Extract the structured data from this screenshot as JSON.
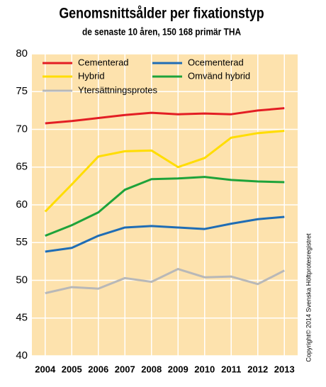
{
  "chart_data": {
    "type": "line",
    "title": "Genomsnittsålder per fixationstyp",
    "subtitle": "de senaste 10 åren, 150 168 primär THA",
    "annotation": "Copyright© 2014 Svenska Höftprotesregistret",
    "categories": [
      "2004",
      "2005",
      "2006",
      "2007",
      "2008",
      "2009",
      "2010",
      "2011",
      "2012",
      "2013"
    ],
    "series": [
      {
        "name": "Cementerad",
        "color": "#e31e24",
        "values": [
          70.8,
          71.1,
          71.5,
          71.9,
          72.2,
          72.0,
          72.1,
          72.0,
          72.5,
          72.8
        ]
      },
      {
        "name": "Ocementerad",
        "color": "#1f6db5",
        "values": [
          53.8,
          54.3,
          55.9,
          57.0,
          57.2,
          57.0,
          56.8,
          57.5,
          58.1,
          58.4
        ]
      },
      {
        "name": "Hybrid",
        "color": "#ffdd00",
        "values": [
          59.1,
          62.7,
          66.4,
          67.1,
          67.2,
          65.0,
          66.2,
          68.9,
          69.5,
          69.8
        ]
      },
      {
        "name": "Omvänd hybrid",
        "color": "#1ea33a",
        "values": [
          55.9,
          57.3,
          59.0,
          62.0,
          63.4,
          63.5,
          63.7,
          63.3,
          63.1,
          63.0
        ]
      },
      {
        "name": "Ytersättningsprotes",
        "color": "#b8b8b8",
        "values": [
          48.3,
          49.1,
          48.9,
          50.3,
          49.8,
          51.5,
          50.4,
          50.5,
          49.5,
          51.3
        ]
      }
    ],
    "ylim": [
      40,
      80
    ],
    "yticks": [
      40,
      45,
      50,
      55,
      60,
      65,
      70,
      75,
      80
    ],
    "grid": true
  }
}
